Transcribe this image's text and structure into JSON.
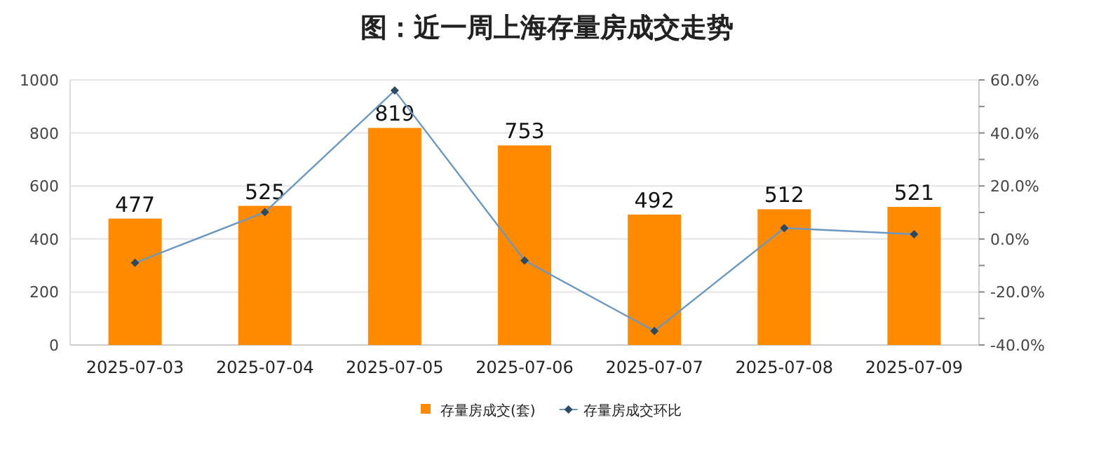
{
  "chart_data": {
    "type": "bar",
    "title": "图：近一周上海存量房成交走势",
    "categories": [
      "2025-07-03",
      "2025-07-04",
      "2025-07-05",
      "2025-07-06",
      "2025-07-07",
      "2025-07-08",
      "2025-07-09"
    ],
    "series": [
      {
        "name": "存量房成交(套)",
        "color": "#ff8a00",
        "values": [
          477,
          525,
          819,
          753,
          492,
          512,
          521
        ],
        "data_labels": true
      },
      {
        "name": "存量房成交环比",
        "type": "line",
        "axis": "y2",
        "color": "#6b98c2",
        "marker": "diamond",
        "values": [
          -9.0,
          10.1,
          56.0,
          -8.1,
          -34.7,
          4.1,
          1.8
        ]
      }
    ],
    "ylim": [
      0,
      1000
    ],
    "yticks": [
      0,
      200,
      400,
      600,
      800,
      1000
    ],
    "y2lim": [
      -40,
      60
    ],
    "y2ticks": [
      {
        "value": -40,
        "label": "-40.0%"
      },
      {
        "value": -30,
        "label": null
      },
      {
        "value": -20,
        "label": "-20.0%"
      },
      {
        "value": -10,
        "label": null
      },
      {
        "value": 0,
        "label": "0.0%"
      },
      {
        "value": 10,
        "label": null
      },
      {
        "value": 20,
        "label": "20.0%"
      },
      {
        "value": 30,
        "label": null
      },
      {
        "value": 40,
        "label": "40.0%"
      },
      {
        "value": 50,
        "label": null
      },
      {
        "value": 60,
        "label": "60.0%"
      }
    ],
    "grid": "y",
    "legend": "bottom"
  }
}
